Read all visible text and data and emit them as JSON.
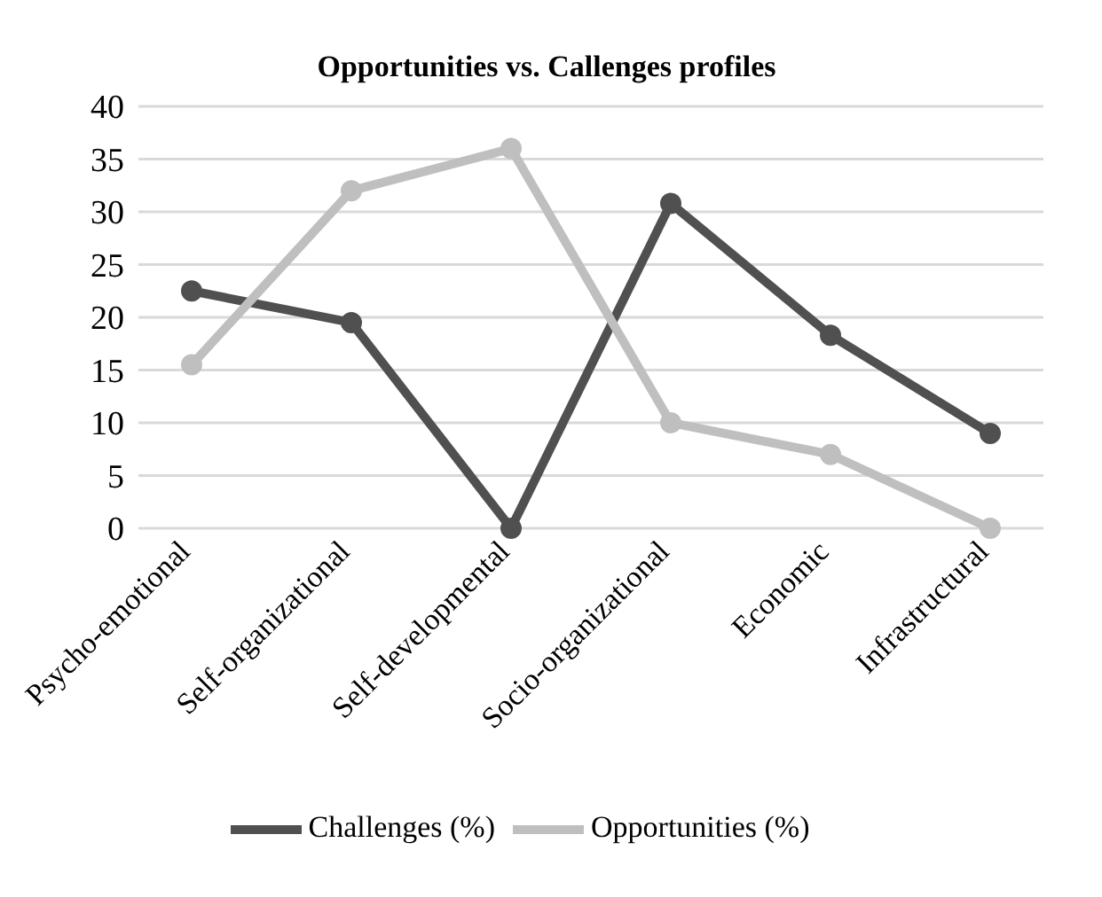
{
  "chart_data": {
    "type": "line",
    "title": "Opportunities vs. Callenges profiles",
    "categories": [
      "Psycho-emotional",
      "Self-organizational",
      "Self-developmental",
      "Socio-organizational",
      "Economic",
      "Infrastructural"
    ],
    "series": [
      {
        "name": "Challenges (%)",
        "color": "#505050",
        "values": [
          22.5,
          19.5,
          0,
          30.8,
          18.3,
          9
        ]
      },
      {
        "name": "Opportunities (%)",
        "color": "#bfbfbf",
        "values": [
          15.5,
          32,
          36,
          10,
          7,
          0
        ]
      }
    ],
    "ylim": [
      0,
      40
    ],
    "yticks": [
      0,
      5,
      10,
      15,
      20,
      25,
      30,
      35,
      40
    ],
    "grid": "y",
    "legend": "bottom",
    "marker": "circle",
    "line_style": "solid"
  }
}
